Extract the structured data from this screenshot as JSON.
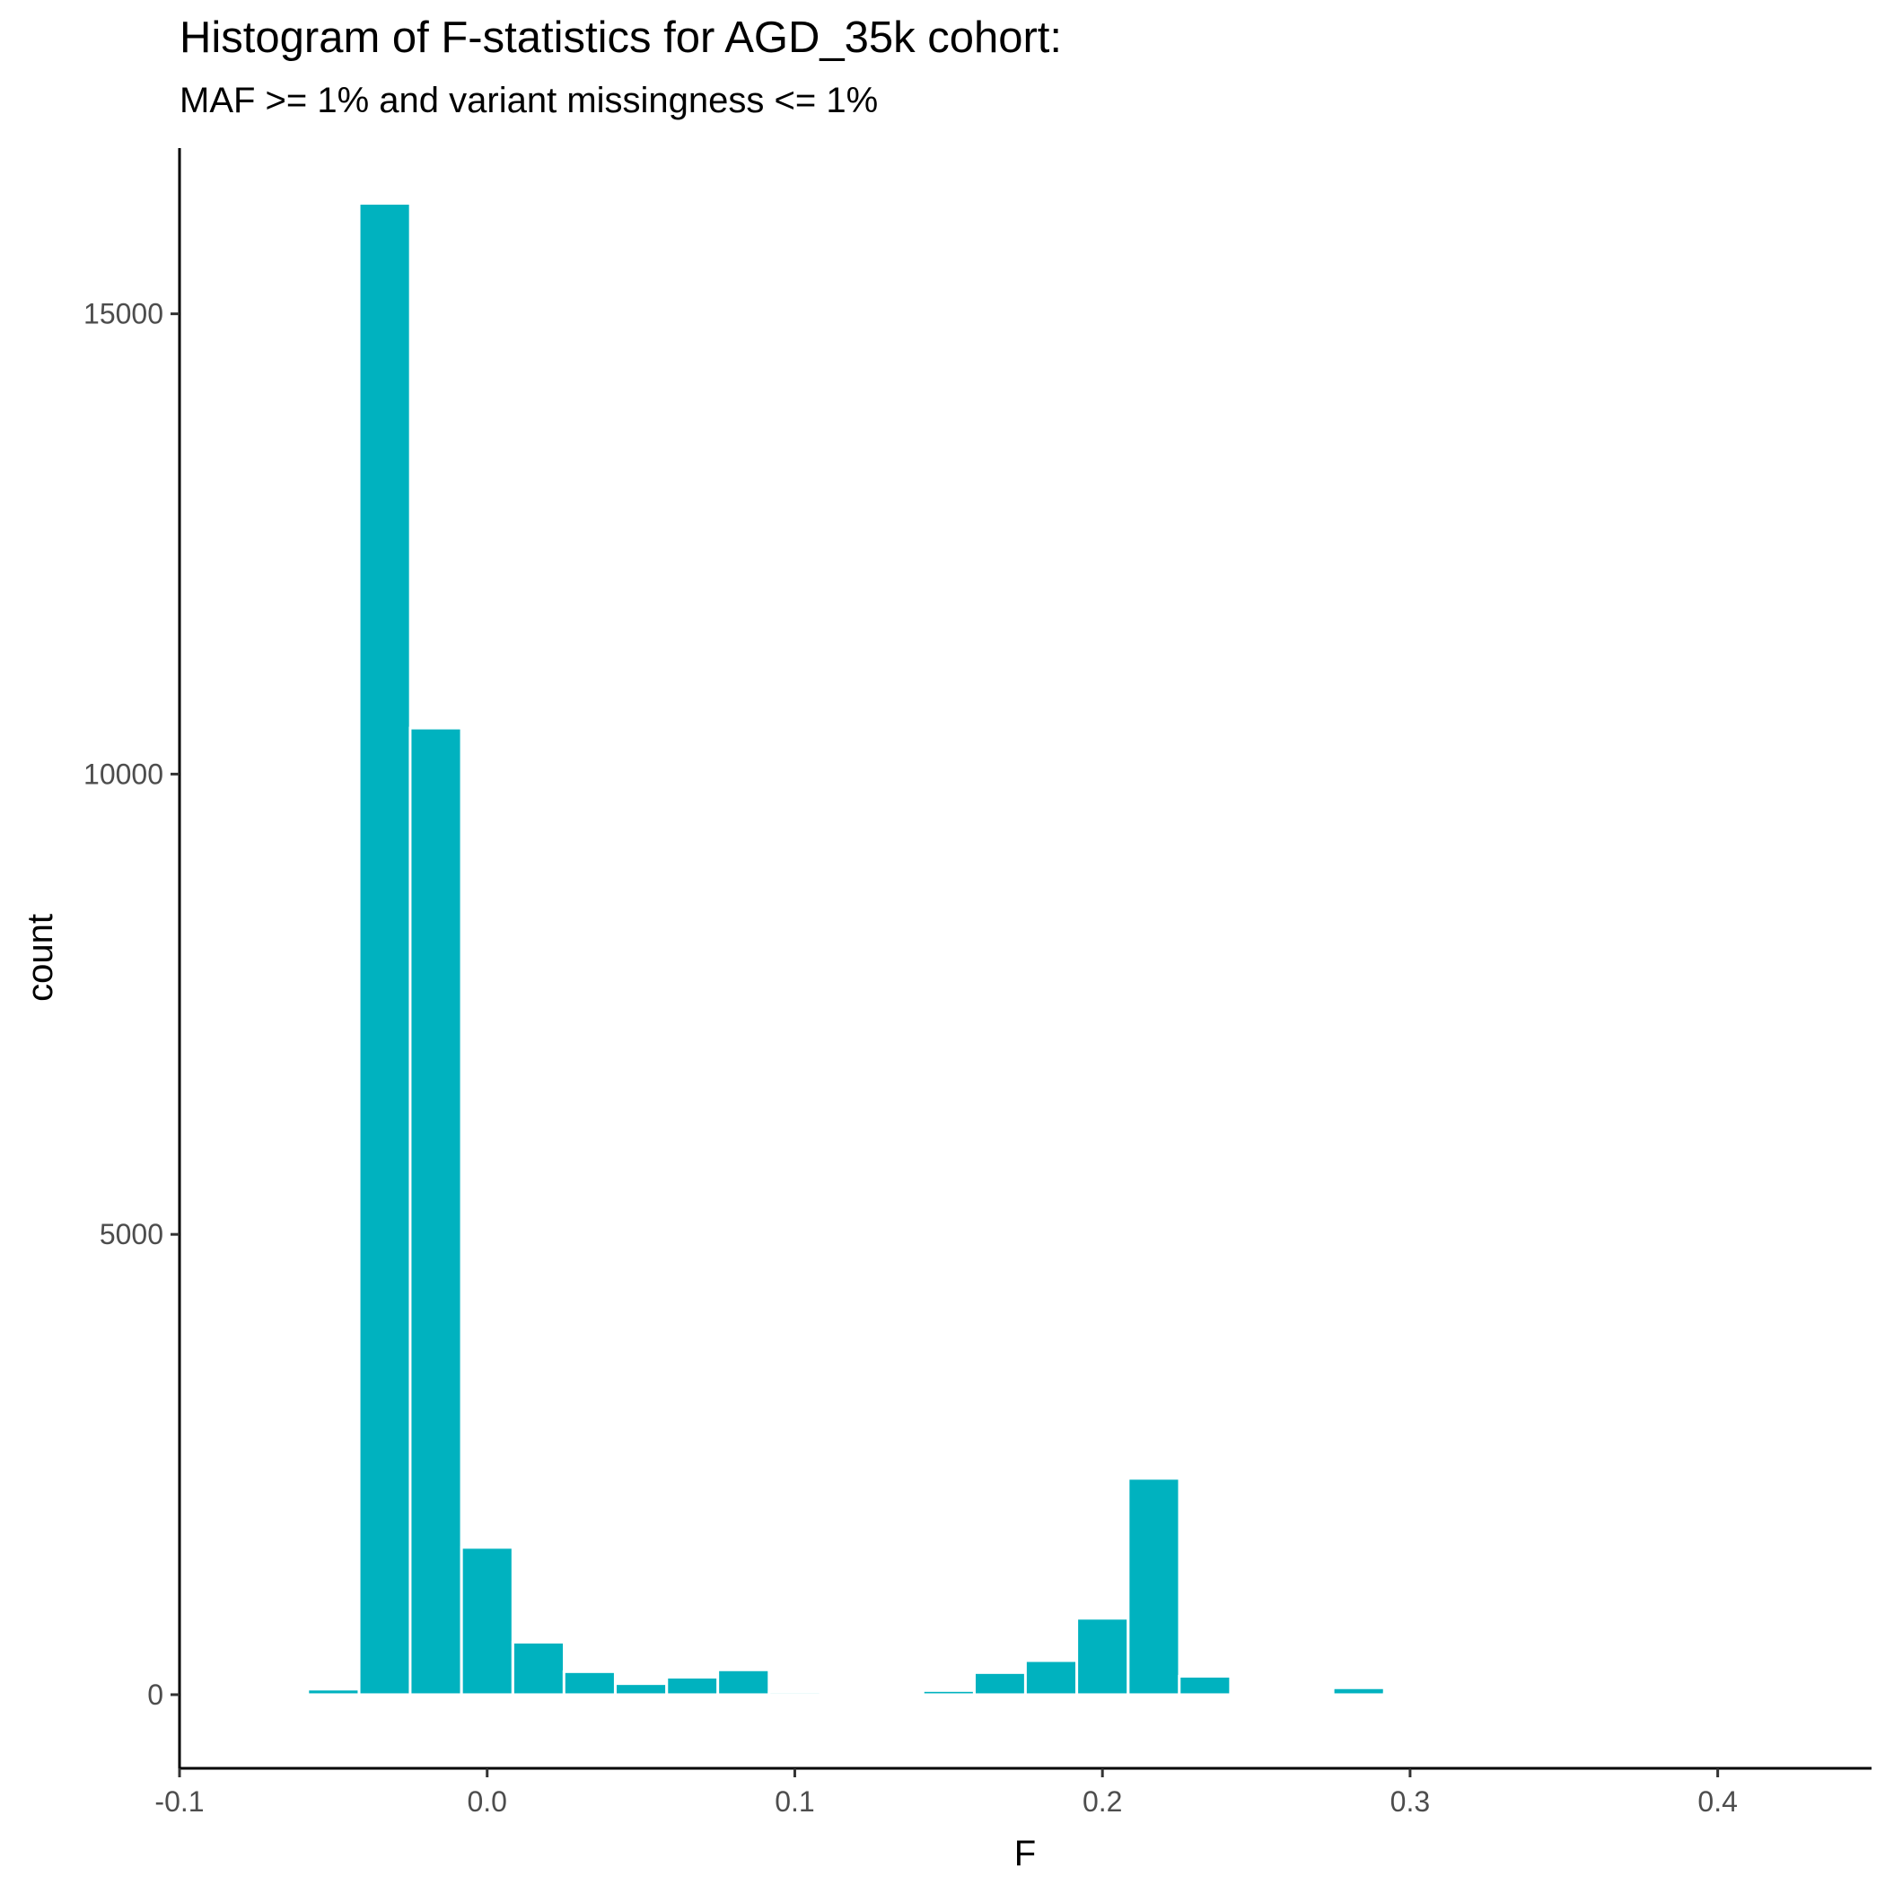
{
  "chart_data": {
    "type": "bar",
    "title": "Histogram of F-statistics for AGD_35k cohort:",
    "subtitle": "MAF >= 1% and variant missingness <= 1%",
    "xlabel": "F",
    "ylabel": "count",
    "bin_width": 0.01667,
    "bin_centers": [
      -0.05,
      -0.0333,
      -0.0167,
      0.0,
      0.0167,
      0.0333,
      0.05,
      0.0667,
      0.0833,
      0.1,
      0.1167,
      0.1333,
      0.15,
      0.1667,
      0.1833,
      0.2,
      0.2167,
      0.2333,
      0.25,
      0.2667,
      0.2833,
      0.3
    ],
    "values": [
      60,
      16200,
      10500,
      1600,
      570,
      250,
      120,
      190,
      270,
      30,
      25,
      15,
      45,
      240,
      370,
      830,
      2350,
      200,
      25,
      10,
      75,
      10
    ],
    "xlim": [
      -0.1,
      0.45
    ],
    "ylim": [
      -800,
      16800
    ],
    "x_ticks": [
      -0.1,
      0.0,
      0.1,
      0.2,
      0.3,
      0.4
    ],
    "x_tick_labels": [
      "-0.1",
      "0.0",
      "0.1",
      "0.2",
      "0.3",
      "0.4"
    ],
    "y_ticks": [
      0,
      5000,
      10000,
      15000
    ],
    "y_tick_labels": [
      "0",
      "5000",
      "10000",
      "15000"
    ],
    "bar_color": "#00b2bf",
    "grid": false,
    "legend": "none"
  }
}
